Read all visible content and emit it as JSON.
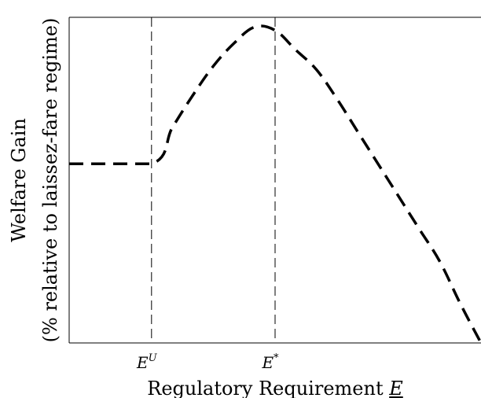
{
  "chart_data": {
    "type": "line",
    "title": "",
    "xlabel": "Regulatory Requirement E",
    "xlabel_parts": {
      "text": "Regulatory Requirement ",
      "symbol": "E"
    },
    "ylabel_line1": "Welfare Gain",
    "ylabel_line2": "(% relative to laissez-fare regime)",
    "xlim": [
      0,
      10
    ],
    "ylim": [
      0,
      10
    ],
    "grid": false,
    "legend": "none",
    "x_ticks": [
      {
        "x": 2,
        "base": "E",
        "sup": "U"
      },
      {
        "x": 5,
        "base": "E",
        "sup": "*"
      }
    ],
    "series": [
      {
        "style": "dashed",
        "color": "#000000",
        "x": [
          0,
          2,
          2.5,
          3,
          3.5,
          4,
          4.5,
          5,
          5.5,
          6,
          6.5,
          7,
          7.5,
          8,
          8.5,
          9,
          9.5,
          10
        ],
        "y": [
          5.5,
          5.5,
          6.6,
          7.6,
          8.5,
          9.2,
          9.7,
          9.6,
          9.0,
          8.4,
          7.5,
          6.5,
          5.5,
          4.5,
          3.5,
          2.5,
          1.2,
          0
        ]
      }
    ],
    "vlines": [
      {
        "x": 2,
        "style": "dashed"
      },
      {
        "x": 5,
        "style": "dashed"
      }
    ]
  }
}
